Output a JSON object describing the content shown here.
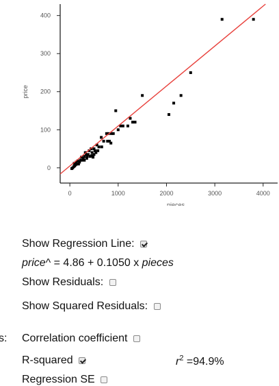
{
  "chart_data": {
    "type": "scatter",
    "xlabel": "pieces",
    "ylabel": "price",
    "xlim": [
      -200,
      4300
    ],
    "ylim": [
      -40,
      430
    ],
    "x_ticks": [
      0,
      1000,
      2000,
      3000,
      4000
    ],
    "y_ticks": [
      0,
      100,
      200,
      300,
      400
    ],
    "grid": false,
    "point_color": "#000000",
    "line_color": "#e8413c",
    "regression": {
      "intercept": 4.86,
      "slope": 0.105
    },
    "points": [
      {
        "x": 3150,
        "y": 390
      },
      {
        "x": 3800,
        "y": 390
      },
      {
        "x": 2500,
        "y": 250
      },
      {
        "x": 1500,
        "y": 190
      },
      {
        "x": 2300,
        "y": 190
      },
      {
        "x": 2150,
        "y": 170
      },
      {
        "x": 2050,
        "y": 140
      },
      {
        "x": 950,
        "y": 150
      },
      {
        "x": 1250,
        "y": 130
      },
      {
        "x": 1300,
        "y": 120
      },
      {
        "x": 1350,
        "y": 120
      },
      {
        "x": 1050,
        "y": 110
      },
      {
        "x": 1100,
        "y": 110
      },
      {
        "x": 1200,
        "y": 110
      },
      {
        "x": 1000,
        "y": 100
      },
      {
        "x": 760,
        "y": 90
      },
      {
        "x": 800,
        "y": 90
      },
      {
        "x": 860,
        "y": 90
      },
      {
        "x": 900,
        "y": 90
      },
      {
        "x": 650,
        "y": 80
      },
      {
        "x": 700,
        "y": 70
      },
      {
        "x": 780,
        "y": 70
      },
      {
        "x": 820,
        "y": 70
      },
      {
        "x": 850,
        "y": 65
      },
      {
        "x": 560,
        "y": 60
      },
      {
        "x": 600,
        "y": 55
      },
      {
        "x": 660,
        "y": 55
      },
      {
        "x": 500,
        "y": 50
      },
      {
        "x": 520,
        "y": 45
      },
      {
        "x": 580,
        "y": 45
      },
      {
        "x": 440,
        "y": 50
      },
      {
        "x": 460,
        "y": 40
      },
      {
        "x": 400,
        "y": 45
      },
      {
        "x": 380,
        "y": 35
      },
      {
        "x": 420,
        "y": 30
      },
      {
        "x": 500,
        "y": 35
      },
      {
        "x": 340,
        "y": 35
      },
      {
        "x": 300,
        "y": 30
      },
      {
        "x": 350,
        "y": 25
      },
      {
        "x": 280,
        "y": 25
      },
      {
        "x": 250,
        "y": 20
      },
      {
        "x": 300,
        "y": 20
      },
      {
        "x": 220,
        "y": 20
      },
      {
        "x": 200,
        "y": 15
      },
      {
        "x": 180,
        "y": 10
      },
      {
        "x": 150,
        "y": 10
      },
      {
        "x": 120,
        "y": 8
      },
      {
        "x": 100,
        "y": 5
      },
      {
        "x": 80,
        "y": 3
      },
      {
        "x": 60,
        "y": 0
      },
      {
        "x": 40,
        "y": -2
      },
      {
        "x": 90,
        "y": 12
      },
      {
        "x": 130,
        "y": 15
      },
      {
        "x": 160,
        "y": 18
      },
      {
        "x": 240,
        "y": 28
      },
      {
        "x": 320,
        "y": 40
      },
      {
        "x": 360,
        "y": 30
      },
      {
        "x": 450,
        "y": 32
      },
      {
        "x": 480,
        "y": 28
      },
      {
        "x": 540,
        "y": 40
      }
    ]
  },
  "controls": {
    "show_regression_label": "Show Regression Line:",
    "show_regression_checked": true,
    "equation_var": "price",
    "equation_text": "^ = 4.86 + 0.1050 x ",
    "equation_x": "pieces",
    "show_residuals_label": "Show Residuals:",
    "show_residuals_checked": false,
    "show_squared_residuals_label": "Show Squared Residuals:",
    "show_squared_residuals_checked": false,
    "stats_prefix": "s:",
    "correlation_label": "Correlation coefficient",
    "correlation_checked": false,
    "rsquared_label": "R-squared",
    "rsquared_checked": true,
    "rsquared_var": "r",
    "rsquared_exp": "2",
    "rsquared_value": " =94.9%",
    "regression_se_label": "Regression SE",
    "regression_se_checked": false
  }
}
